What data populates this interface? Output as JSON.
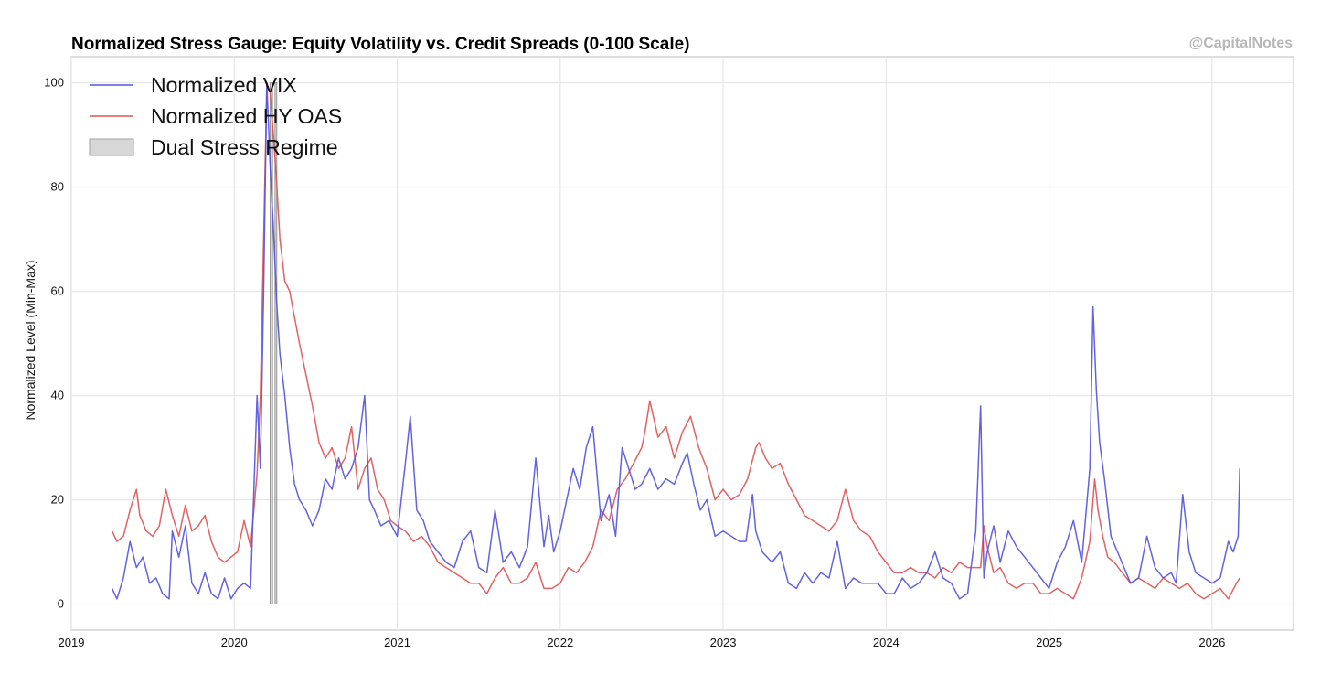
{
  "chart_data": {
    "type": "line",
    "title": "Normalized Stress Gauge: Equity Volatility vs. Credit Spreads (0-100 Scale)",
    "watermark": "@CapitalNotes",
    "xlabel": "",
    "ylabel": "Normalized Level (Min-Max)",
    "xlim": [
      2019.0,
      2026.5
    ],
    "ylim": [
      -5,
      105
    ],
    "x_ticks": [
      2019,
      2020,
      2021,
      2022,
      2023,
      2024,
      2025,
      2026
    ],
    "x_tick_labels": [
      "2019",
      "2020",
      "2021",
      "2022",
      "2023",
      "2024",
      "2025",
      "2026"
    ],
    "y_ticks": [
      0,
      20,
      40,
      60,
      80,
      100
    ],
    "y_tick_labels": [
      "0",
      "20",
      "40",
      "60",
      "80",
      "100"
    ],
    "grid": true,
    "legend": {
      "position": "top-left",
      "entries": [
        "Normalized VIX",
        "Normalized HY OAS",
        "Dual Stress Regime"
      ]
    },
    "colors": {
      "vix": "#5555e0",
      "hy_oas": "#e05555",
      "regime": "#b0b0b0"
    },
    "shaded_regions": [
      {
        "name": "Dual Stress Regime",
        "start": 2020.22,
        "end": 2020.235
      },
      {
        "name": "Dual Stress Regime",
        "start": 2020.25,
        "end": 2020.26
      }
    ],
    "series": [
      {
        "name": "Normalized VIX",
        "x": [
          2019.25,
          2019.28,
          2019.32,
          2019.36,
          2019.4,
          2019.44,
          2019.48,
          2019.52,
          2019.56,
          2019.6,
          2019.62,
          2019.66,
          2019.7,
          2019.74,
          2019.78,
          2019.82,
          2019.86,
          2019.9,
          2019.94,
          2019.98,
          2020.02,
          2020.06,
          2020.1,
          2020.14,
          2020.16,
          2020.18,
          2020.2,
          2020.22,
          2020.24,
          2020.26,
          2020.28,
          2020.31,
          2020.34,
          2020.37,
          2020.4,
          2020.44,
          2020.48,
          2020.52,
          2020.56,
          2020.6,
          2020.64,
          2020.68,
          2020.72,
          2020.76,
          2020.8,
          2020.83,
          2020.86,
          2020.9,
          2020.95,
          2021.0,
          2021.05,
          2021.08,
          2021.12,
          2021.16,
          2021.2,
          2021.25,
          2021.3,
          2021.35,
          2021.4,
          2021.45,
          2021.5,
          2021.55,
          2021.6,
          2021.65,
          2021.7,
          2021.75,
          2021.8,
          2021.85,
          2021.9,
          2021.93,
          2021.96,
          2022.0,
          2022.04,
          2022.08,
          2022.12,
          2022.16,
          2022.2,
          2022.25,
          2022.3,
          2022.34,
          2022.38,
          2022.42,
          2022.46,
          2022.5,
          2022.55,
          2022.6,
          2022.65,
          2022.7,
          2022.75,
          2022.78,
          2022.82,
          2022.86,
          2022.9,
          2022.95,
          2023.0,
          2023.05,
          2023.1,
          2023.14,
          2023.18,
          2023.2,
          2023.24,
          2023.3,
          2023.35,
          2023.4,
          2023.45,
          2023.5,
          2023.55,
          2023.6,
          2023.65,
          2023.7,
          2023.75,
          2023.8,
          2023.85,
          2023.9,
          2023.95,
          2024.0,
          2024.05,
          2024.1,
          2024.15,
          2024.2,
          2024.25,
          2024.3,
          2024.35,
          2024.4,
          2024.45,
          2024.5,
          2024.55,
          2024.58,
          2024.6,
          2024.62,
          2024.66,
          2024.7,
          2024.75,
          2024.8,
          2024.85,
          2024.9,
          2024.95,
          2025.0,
          2025.05,
          2025.1,
          2025.15,
          2025.2,
          2025.25,
          2025.27,
          2025.29,
          2025.31,
          2025.34,
          2025.38,
          2025.42,
          2025.46,
          2025.5,
          2025.55,
          2025.6,
          2025.65,
          2025.7,
          2025.75,
          2025.78,
          2025.82,
          2025.86,
          2025.9,
          2025.95,
          2026.0,
          2026.05,
          2026.1,
          2026.13,
          2026.16,
          2026.17
        ],
        "y": [
          3,
          1,
          5,
          12,
          7,
          9,
          4,
          5,
          2,
          1,
          14,
          9,
          15,
          4,
          2,
          6,
          2,
          1,
          5,
          1,
          3,
          4,
          3,
          40,
          26,
          60,
          100,
          84,
          72,
          58,
          48,
          40,
          30,
          23,
          20,
          18,
          15,
          18,
          24,
          22,
          28,
          24,
          26,
          30,
          40,
          20,
          18,
          15,
          16,
          13,
          27,
          36,
          18,
          16,
          12,
          10,
          8,
          7,
          12,
          14,
          7,
          6,
          18,
          8,
          10,
          7,
          11,
          28,
          11,
          17,
          10,
          14,
          20,
          26,
          22,
          30,
          34,
          16,
          21,
          13,
          30,
          26,
          22,
          23,
          26,
          22,
          24,
          23,
          27,
          29,
          23,
          18,
          20,
          13,
          14,
          13,
          12,
          12,
          21,
          14,
          10,
          8,
          10,
          4,
          3,
          6,
          4,
          6,
          5,
          12,
          3,
          5,
          4,
          4,
          4,
          2,
          2,
          5,
          3,
          4,
          6,
          10,
          5,
          4,
          1,
          2,
          14,
          38,
          5,
          10,
          15,
          8,
          14,
          11,
          9,
          7,
          5,
          3,
          8,
          11,
          16,
          8,
          26,
          57,
          41,
          31,
          24,
          13,
          10,
          7,
          4,
          5,
          13,
          7,
          5,
          6,
          4,
          21,
          10,
          6,
          5,
          4,
          5,
          12,
          10,
          13,
          26
        ]
      },
      {
        "name": "Normalized HY OAS",
        "x": [
          2019.25,
          2019.28,
          2019.32,
          2019.36,
          2019.4,
          2019.42,
          2019.46,
          2019.5,
          2019.54,
          2019.58,
          2019.62,
          2019.66,
          2019.7,
          2019.74,
          2019.78,
          2019.82,
          2019.86,
          2019.9,
          2019.94,
          2019.98,
          2020.02,
          2020.06,
          2020.1,
          2020.14,
          2020.16,
          2020.18,
          2020.2,
          2020.22,
          2020.24,
          2020.26,
          2020.28,
          2020.31,
          2020.34,
          2020.37,
          2020.4,
          2020.44,
          2020.48,
          2020.52,
          2020.56,
          2020.6,
          2020.64,
          2020.68,
          2020.72,
          2020.76,
          2020.8,
          2020.84,
          2020.88,
          2020.92,
          2020.96,
          2021.0,
          2021.05,
          2021.1,
          2021.15,
          2021.2,
          2021.25,
          2021.3,
          2021.35,
          2021.4,
          2021.45,
          2021.5,
          2021.55,
          2021.6,
          2021.65,
          2021.7,
          2021.75,
          2021.8,
          2021.85,
          2021.9,
          2021.95,
          2022.0,
          2022.05,
          2022.1,
          2022.15,
          2022.2,
          2022.25,
          2022.3,
          2022.35,
          2022.4,
          2022.45,
          2022.5,
          2022.52,
          2022.55,
          2022.6,
          2022.65,
          2022.7,
          2022.75,
          2022.8,
          2022.85,
          2022.9,
          2022.95,
          2023.0,
          2023.05,
          2023.1,
          2023.15,
          2023.2,
          2023.22,
          2023.26,
          2023.3,
          2023.35,
          2023.4,
          2023.45,
          2023.5,
          2023.55,
          2023.6,
          2023.65,
          2023.7,
          2023.75,
          2023.8,
          2023.85,
          2023.9,
          2023.95,
          2024.0,
          2024.05,
          2024.1,
          2024.15,
          2024.2,
          2024.25,
          2024.3,
          2024.35,
          2024.4,
          2024.45,
          2024.5,
          2024.55,
          2024.58,
          2024.6,
          2024.62,
          2024.66,
          2024.7,
          2024.75,
          2024.8,
          2024.85,
          2024.9,
          2024.95,
          2025.0,
          2025.05,
          2025.1,
          2025.15,
          2025.2,
          2025.25,
          2025.28,
          2025.3,
          2025.33,
          2025.36,
          2025.4,
          2025.45,
          2025.5,
          2025.55,
          2025.6,
          2025.65,
          2025.7,
          2025.75,
          2025.8,
          2025.85,
          2025.9,
          2025.95,
          2026.0,
          2026.05,
          2026.1,
          2026.15,
          2026.17
        ],
        "y": [
          14,
          12,
          13,
          18,
          22,
          17,
          14,
          13,
          15,
          22,
          17,
          13,
          19,
          14,
          15,
          17,
          12,
          9,
          8,
          9,
          10,
          16,
          11,
          25,
          40,
          70,
          100,
          98,
          90,
          81,
          70,
          62,
          60,
          55,
          50,
          44,
          38,
          31,
          28,
          30,
          26,
          28,
          34,
          22,
          26,
          28,
          22,
          20,
          16,
          15,
          14,
          12,
          13,
          11,
          8,
          7,
          6,
          5,
          4,
          4,
          2,
          5,
          7,
          4,
          4,
          5,
          8,
          3,
          3,
          4,
          7,
          6,
          8,
          11,
          18,
          16,
          22,
          24,
          27,
          30,
          33,
          39,
          32,
          34,
          28,
          33,
          36,
          30,
          26,
          20,
          22,
          20,
          21,
          24,
          30,
          31,
          28,
          26,
          27,
          23,
          20,
          17,
          16,
          15,
          14,
          16,
          22,
          16,
          14,
          13,
          10,
          8,
          6,
          6,
          7,
          6,
          6,
          5,
          7,
          6,
          8,
          7,
          7,
          7,
          15,
          11,
          6,
          7,
          4,
          3,
          4,
          4,
          2,
          2,
          3,
          2,
          1,
          5,
          12,
          24,
          18,
          13,
          9,
          8,
          6,
          4,
          5,
          4,
          3,
          5,
          4,
          3,
          4,
          2,
          1,
          2,
          3,
          1,
          4,
          5
        ]
      }
    ]
  }
}
